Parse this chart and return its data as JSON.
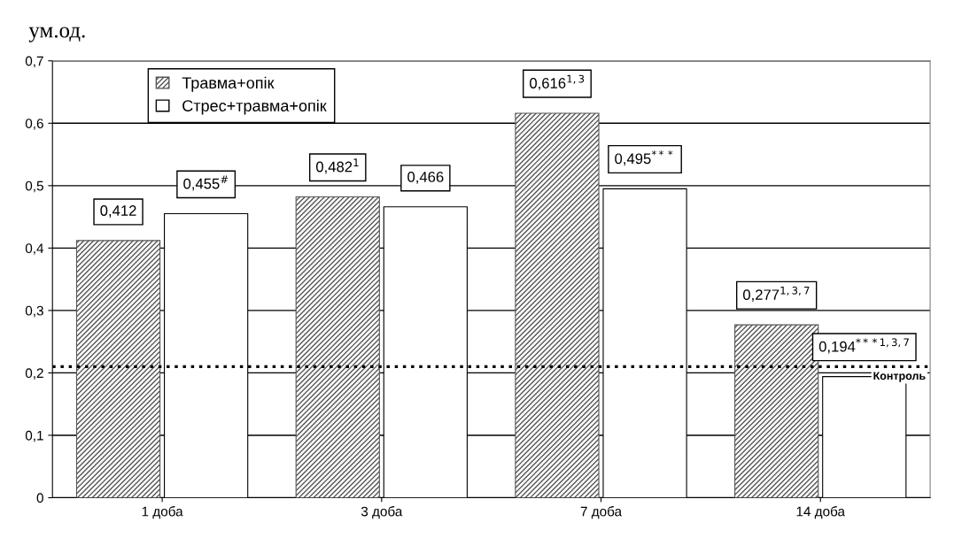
{
  "chart_data": {
    "type": "bar",
    "ylabel": "ум.од.",
    "categories": [
      "1 доба",
      "3 доба",
      "7 доба",
      "14 доба"
    ],
    "series": [
      {
        "name": "Травма+опік",
        "color": "#555555",
        "values": [
          0.412,
          0.482,
          0.616,
          0.277
        ],
        "value_labels": [
          "0,412",
          "0,482$^{1}$",
          "0,616$^{1,3}$",
          "0,277$^{1,3,7}$"
        ]
      },
      {
        "name": "Стрес+травма+опік",
        "color": "#ffffff",
        "values": [
          0.455,
          0.466,
          0.495,
          0.194
        ],
        "value_labels": [
          "0,455$^{#}$",
          "0,466",
          "0,495$^{***}$",
          "0,194$^{***1,3,7}$"
        ]
      }
    ],
    "ylim": [
      0,
      0.7
    ],
    "yticks": [
      {
        "value": 0,
        "label": "0"
      },
      {
        "value": 0.1,
        "label": "0,1"
      },
      {
        "value": 0.2,
        "label": "0,2"
      },
      {
        "value": 0.3,
        "label": "0,3"
      },
      {
        "value": 0.4,
        "label": "0,4"
      },
      {
        "value": 0.5,
        "label": "0,5"
      },
      {
        "value": 0.6,
        "label": "0,6"
      },
      {
        "value": 0.7,
        "label": "0,7"
      }
    ],
    "ref_lines": [
      {
        "axis": "y",
        "value": 0.21,
        "label": "Контроль",
        "color": "#000000",
        "line_style": "dotted"
      }
    ],
    "grid": "y",
    "legend": "top left"
  }
}
